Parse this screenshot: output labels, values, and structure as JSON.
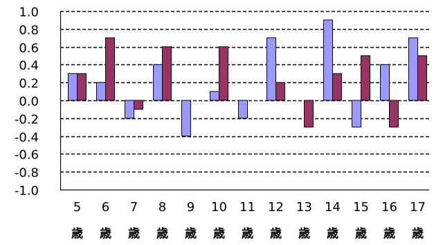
{
  "chart_data": {
    "type": "bar",
    "categories": [
      "5",
      "6",
      "7",
      "8",
      "9",
      "10",
      "11",
      "12",
      "13",
      "14",
      "15",
      "16",
      "17"
    ],
    "category_unit": "歳",
    "series": [
      {
        "color": "#9999ff",
        "values": [
          0.3,
          0.2,
          -0.2,
          0.4,
          -0.4,
          0.1,
          -0.2,
          0.7,
          0.0,
          0.9,
          -0.3,
          0.4,
          0.7
        ]
      },
      {
        "color": "#993366",
        "values": [
          0.3,
          0.7,
          -0.1,
          0.6,
          0.0,
          0.6,
          0.0,
          0.2,
          -0.3,
          0.3,
          0.5,
          -0.3,
          0.5
        ]
      }
    ],
    "ylim": [
      -1.0,
      1.0
    ],
    "yticks": [
      "1.0",
      "0.8",
      "0.6",
      "0.4",
      "0.2",
      "0.0",
      "-0.2",
      "-0.4",
      "-0.6",
      "-0.8",
      "-1.0"
    ],
    "ytick_values": [
      1.0,
      0.8,
      0.6,
      0.4,
      0.2,
      0.0,
      -0.2,
      -0.4,
      -0.6,
      -0.8,
      -1.0
    ],
    "grid": true,
    "grid_style": "dashed",
    "title": "",
    "xlabel": "",
    "ylabel": ""
  }
}
